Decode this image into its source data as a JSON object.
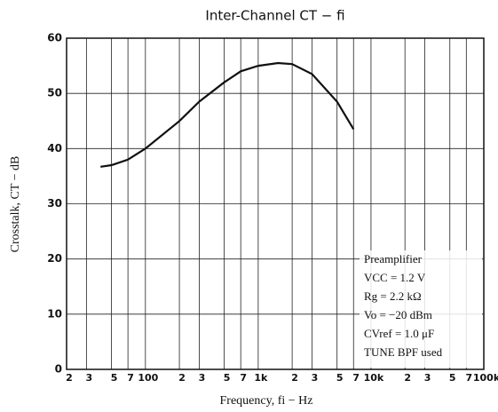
{
  "chart_data": {
    "type": "line",
    "title": "Inter-Channel CT − fi",
    "xlabel": "Frequency, fi − Hz",
    "ylabel": "Crosstalk, CT − dB",
    "log_x": true,
    "grid": true,
    "xlim": [
      20,
      100000
    ],
    "xticks": [
      {
        "value": 20,
        "label": "2"
      },
      {
        "value": 30,
        "label": "3"
      },
      {
        "value": 50,
        "label": "5"
      },
      {
        "value": 70,
        "label": "7"
      },
      100,
      {
        "value": 200,
        "label": "2"
      },
      {
        "value": 300,
        "label": "3"
      },
      {
        "value": 500,
        "label": "5"
      },
      {
        "value": 700,
        "label": "7"
      },
      {
        "value": 1000,
        "label": "1k"
      },
      {
        "value": 2000,
        "label": "2"
      },
      {
        "value": 3000,
        "label": "3"
      },
      {
        "value": 5000,
        "label": "5"
      },
      {
        "value": 7000,
        "label": "7"
      },
      {
        "value": 10000,
        "label": "10k"
      },
      {
        "value": 20000,
        "label": "2"
      },
      {
        "value": 30000,
        "label": "3"
      },
      {
        "value": 50000,
        "label": "5"
      },
      {
        "value": 70000,
        "label": "7"
      },
      {
        "value": 100000,
        "label": "100k"
      }
    ],
    "ylim": [
      0,
      60
    ],
    "yticks": [
      0,
      10,
      20,
      30,
      40,
      50,
      60
    ],
    "x": [
      40,
      50,
      70,
      100,
      200,
      300,
      500,
      700,
      1000,
      1500,
      2000,
      3000,
      5000,
      7000
    ],
    "series": [
      {
        "name": "CT",
        "color": "#111111",
        "values": [
          36.7,
          37,
          38,
          40,
          45,
          48.5,
          52,
          54,
          55,
          55.5,
          55.3,
          53.5,
          48.5,
          43.5
        ]
      }
    ],
    "annotations": [
      "Preamplifier",
      "VCC = 1.2 V",
      "Rg = 2.2 kΩ",
      "Vo = −20 dBm",
      "CVref = 1.0 μF",
      "TUNE BPF used"
    ]
  }
}
